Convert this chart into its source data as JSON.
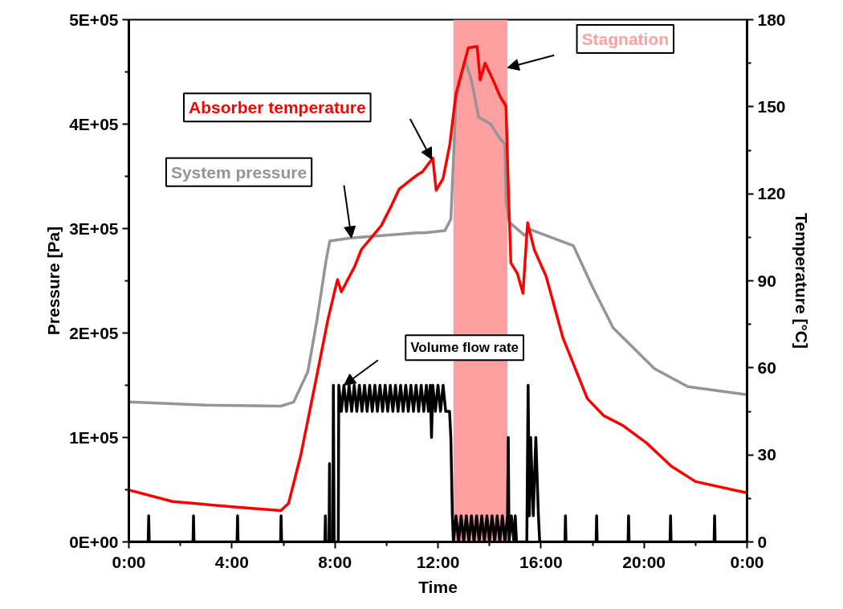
{
  "chart_data": {
    "type": "line",
    "xlabel": "Time",
    "ylabel": "Pressure [Pa]",
    "y2label": "Temperature [°C]",
    "xlim": [
      0,
      24
    ],
    "xticks": [
      {
        "value": 0,
        "label": "0:00"
      },
      {
        "value": 2,
        "label": null
      },
      {
        "value": 4,
        "label": "4:00"
      },
      {
        "value": 6,
        "label": null
      },
      {
        "value": 8,
        "label": "8:00"
      },
      {
        "value": 10,
        "label": null
      },
      {
        "value": 12,
        "label": "12:00"
      },
      {
        "value": 14,
        "label": null
      },
      {
        "value": 16,
        "label": "16:00"
      },
      {
        "value": 18,
        "label": null
      },
      {
        "value": 20,
        "label": "20:00"
      },
      {
        "value": 22,
        "label": null
      },
      {
        "value": 24,
        "label": "0:00"
      }
    ],
    "ylim": [
      0,
      500000
    ],
    "yticks": [
      {
        "value": 0,
        "label": "0E+00"
      },
      {
        "value": 50000,
        "label": null
      },
      {
        "value": 100000,
        "label": "1E+05"
      },
      {
        "value": 150000,
        "label": null
      },
      {
        "value": 200000,
        "label": "2E+05"
      },
      {
        "value": 250000,
        "label": null
      },
      {
        "value": 300000,
        "label": "3E+05"
      },
      {
        "value": 350000,
        "label": null
      },
      {
        "value": 400000,
        "label": "4E+05"
      },
      {
        "value": 450000,
        "label": null
      },
      {
        "value": 500000,
        "label": "5E+05"
      }
    ],
    "y2lim": [
      0,
      180
    ],
    "y2ticks": [
      0,
      {
        "value": 15,
        "label": null
      },
      30,
      {
        "value": 45,
        "label": null
      },
      60,
      {
        "value": 75,
        "label": null
      },
      90,
      {
        "value": 105,
        "label": null
      },
      120,
      {
        "value": 135,
        "label": null
      },
      150,
      {
        "value": 165,
        "label": null
      },
      180
    ],
    "bands": [
      {
        "axis": "x",
        "from": 12.6,
        "to": 14.7,
        "label": "Stagnation",
        "color": "#ffa0a0"
      }
    ],
    "series": [
      {
        "name": "System pressure",
        "color": "#939598",
        "x": [
          0,
          3,
          5.9,
          6.4,
          6.95,
          7.3,
          7.66,
          7.8,
          8.6,
          11.2,
          11.5,
          12.27,
          12.5,
          12.7,
          13.05,
          13.3,
          13.58,
          14.05,
          14.36,
          14.6,
          14.65,
          14.77,
          15.36,
          15.6,
          17.26,
          18.0,
          18.8,
          20.4,
          21.7,
          24
        ],
        "values": [
          134000,
          131000,
          130000,
          134000,
          163000,
          212000,
          270000,
          288000,
          291000,
          296000,
          296000,
          298000,
          309000,
          423000,
          461500,
          442000,
          406700,
          400000,
          388000,
          380500,
          325000,
          306000,
          293500,
          299000,
          283500,
          244000,
          205000,
          166000,
          148700,
          141000
        ]
      },
      {
        "name": "Absorber temperature",
        "color": "#ff0000",
        "axis": "y2",
        "x": [
          0,
          1.7,
          4.3,
          5.9,
          6.2,
          6.67,
          7.2,
          7.72,
          7.97,
          8.1,
          8.25,
          8.77,
          9.03,
          9.8,
          10.2,
          10.5,
          11.2,
          11.4,
          11.8,
          11.93,
          12.2,
          12.46,
          12.7,
          13.18,
          13.52,
          13.64,
          13.83,
          14.17,
          14.42,
          14.64,
          14.73,
          14.83,
          15.08,
          15.3,
          15.48,
          15.74,
          16.2,
          16.85,
          17.8,
          18.44,
          19.2,
          20.1,
          21.06,
          22.0,
          24
        ],
        "values": [
          17.9,
          13.9,
          11.9,
          10.8,
          13.3,
          29.7,
          53,
          76.3,
          85.7,
          90.4,
          86.2,
          95,
          100.8,
          109,
          116,
          121.7,
          126.5,
          127.6,
          132.3,
          121.2,
          125.3,
          137,
          154.5,
          170.3,
          170.8,
          159.2,
          165,
          158.6,
          153.4,
          150.3,
          122.8,
          96.2,
          92.6,
          85.7,
          110,
          100.7,
          91.5,
          70.4,
          49.4,
          43.5,
          40,
          34.1,
          26.1,
          20.8,
          16.9
        ]
      },
      {
        "name": "Volume flow rate",
        "color": "#000000",
        "x": [
          0,
          0.75,
          0.77,
          0.79,
          2.49,
          2.51,
          2.53,
          4.2,
          4.22,
          4.24,
          5.89,
          5.91,
          5.93,
          7.61,
          7.63,
          7.65,
          7.77,
          7.79,
          7.81,
          7.92,
          7.94,
          7.97,
          8.13,
          8.15,
          8.25,
          8.35,
          8.45,
          8.55,
          8.65,
          8.75,
          8.85,
          8.95,
          9.05,
          9.15,
          9.25,
          9.35,
          9.45,
          9.55,
          9.65,
          9.75,
          9.85,
          9.95,
          10.05,
          10.15,
          10.25,
          10.35,
          10.45,
          10.55,
          10.65,
          10.75,
          10.85,
          10.95,
          11.05,
          11.15,
          11.25,
          11.35,
          11.45,
          11.55,
          11.63,
          11.7,
          11.75,
          11.8,
          11.9,
          12.0,
          12.1,
          12.2,
          12.3,
          12.45,
          12.5,
          12.56,
          12.6,
          12.7,
          12.8,
          12.9,
          13.0,
          13.1,
          13.2,
          13.3,
          13.4,
          13.5,
          13.6,
          13.7,
          13.8,
          13.9,
          14.0,
          14.1,
          14.2,
          14.3,
          14.4,
          14.5,
          14.6,
          14.7,
          14.73,
          14.76,
          14.85,
          14.95,
          15.0,
          15.05,
          15.45,
          15.5,
          15.55,
          15.6,
          15.7,
          15.8,
          15.9,
          15.95,
          16.93,
          16.95,
          16.97,
          18.14,
          18.16,
          18.18,
          19.38,
          19.4,
          19.42,
          21.01,
          21.03,
          21.05,
          22.72,
          22.74,
          22.76,
          24
        ],
        "values": [
          0,
          0,
          25000,
          0,
          0,
          25000,
          0,
          0,
          25000,
          0,
          0,
          25000,
          0,
          0,
          25000,
          0,
          0,
          75000,
          0,
          0,
          150000,
          0,
          0,
          150000,
          125000,
          150000,
          125000,
          150000,
          125000,
          150000,
          125000,
          150000,
          125000,
          150000,
          125000,
          150000,
          125000,
          150000,
          125000,
          150000,
          125000,
          150000,
          125000,
          150000,
          125000,
          150000,
          125000,
          150000,
          125000,
          150000,
          125000,
          150000,
          125000,
          150000,
          125000,
          150000,
          125000,
          150000,
          125000,
          150000,
          100000,
          150000,
          125000,
          150000,
          125000,
          150000,
          125000,
          125000,
          100000,
          25000,
          0,
          25000,
          0,
          25000,
          0,
          25000,
          0,
          25000,
          0,
          25000,
          0,
          25000,
          0,
          25000,
          0,
          25000,
          0,
          25000,
          0,
          25000,
          0,
          25000,
          100000,
          0,
          25000,
          0,
          25000,
          0,
          0,
          150000,
          25000,
          100000,
          25000,
          100000,
          25000,
          0,
          0,
          25000,
          0,
          0,
          25000,
          0,
          0,
          25000,
          0,
          0,
          25000,
          0,
          0,
          25000,
          0,
          0
        ]
      }
    ]
  }
}
